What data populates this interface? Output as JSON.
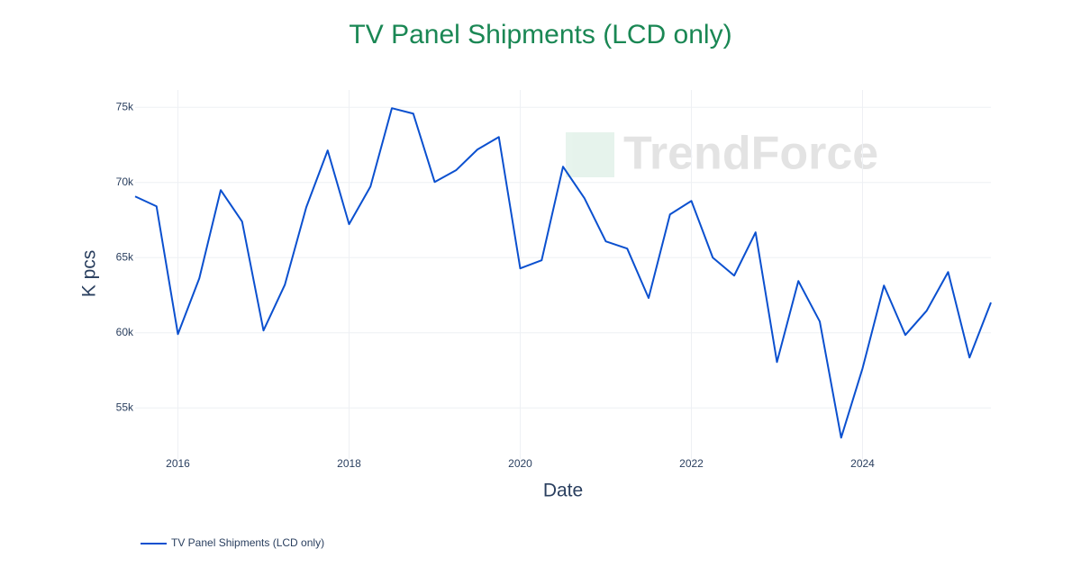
{
  "chart_data": {
    "type": "line",
    "title": "TV Panel Shipments (LCD only)",
    "x_label": "Date",
    "y_label": "K pcs",
    "watermark": "TrendForce",
    "x": [
      "2015-07",
      "2015-10",
      "2016-01",
      "2016-04",
      "2016-07",
      "2016-10",
      "2017-01",
      "2017-04",
      "2017-07",
      "2017-10",
      "2018-01",
      "2018-04",
      "2018-07",
      "2018-10",
      "2019-01",
      "2019-04",
      "2019-07",
      "2019-10",
      "2020-01",
      "2020-04",
      "2020-07",
      "2020-10",
      "2021-01",
      "2021-04",
      "2021-07",
      "2021-10",
      "2022-01",
      "2022-04",
      "2022-07",
      "2022-10",
      "2023-01",
      "2023-04",
      "2023-07",
      "2023-10",
      "2024-01",
      "2024-04",
      "2024-07",
      "2024-10",
      "2025-01",
      "2025-04",
      "2025-07"
    ],
    "series": [
      {
        "name": "TV Panel Shipments (LCD only)",
        "color": "#0b50cf",
        "values": [
          69070,
          68410,
          59910,
          63620,
          69490,
          67400,
          60150,
          63200,
          68350,
          72130,
          67220,
          69730,
          74940,
          74580,
          70030,
          70810,
          72190,
          73020,
          64280,
          64820,
          71050,
          68950,
          66080,
          65600,
          62310,
          67870,
          68770,
          65000,
          63800,
          66680,
          58050,
          63440,
          60750,
          53020,
          57630,
          63140,
          59850,
          61470,
          64040,
          58350,
          62010
        ]
      }
    ],
    "xlim": [
      "2015-07",
      "2025-07"
    ],
    "xticks": [
      "2016",
      "2018",
      "2020",
      "2022",
      "2024"
    ],
    "ylim": [
      51600,
      76150
    ],
    "yticks": [
      {
        "value": 55000,
        "label": "55k"
      },
      {
        "value": 60000,
        "label": "60k"
      },
      {
        "value": 65000,
        "label": "65k"
      },
      {
        "value": 70000,
        "label": "70k"
      },
      {
        "value": 75000,
        "label": "75k"
      }
    ],
    "grid": true,
    "legend": "bottom-left"
  }
}
